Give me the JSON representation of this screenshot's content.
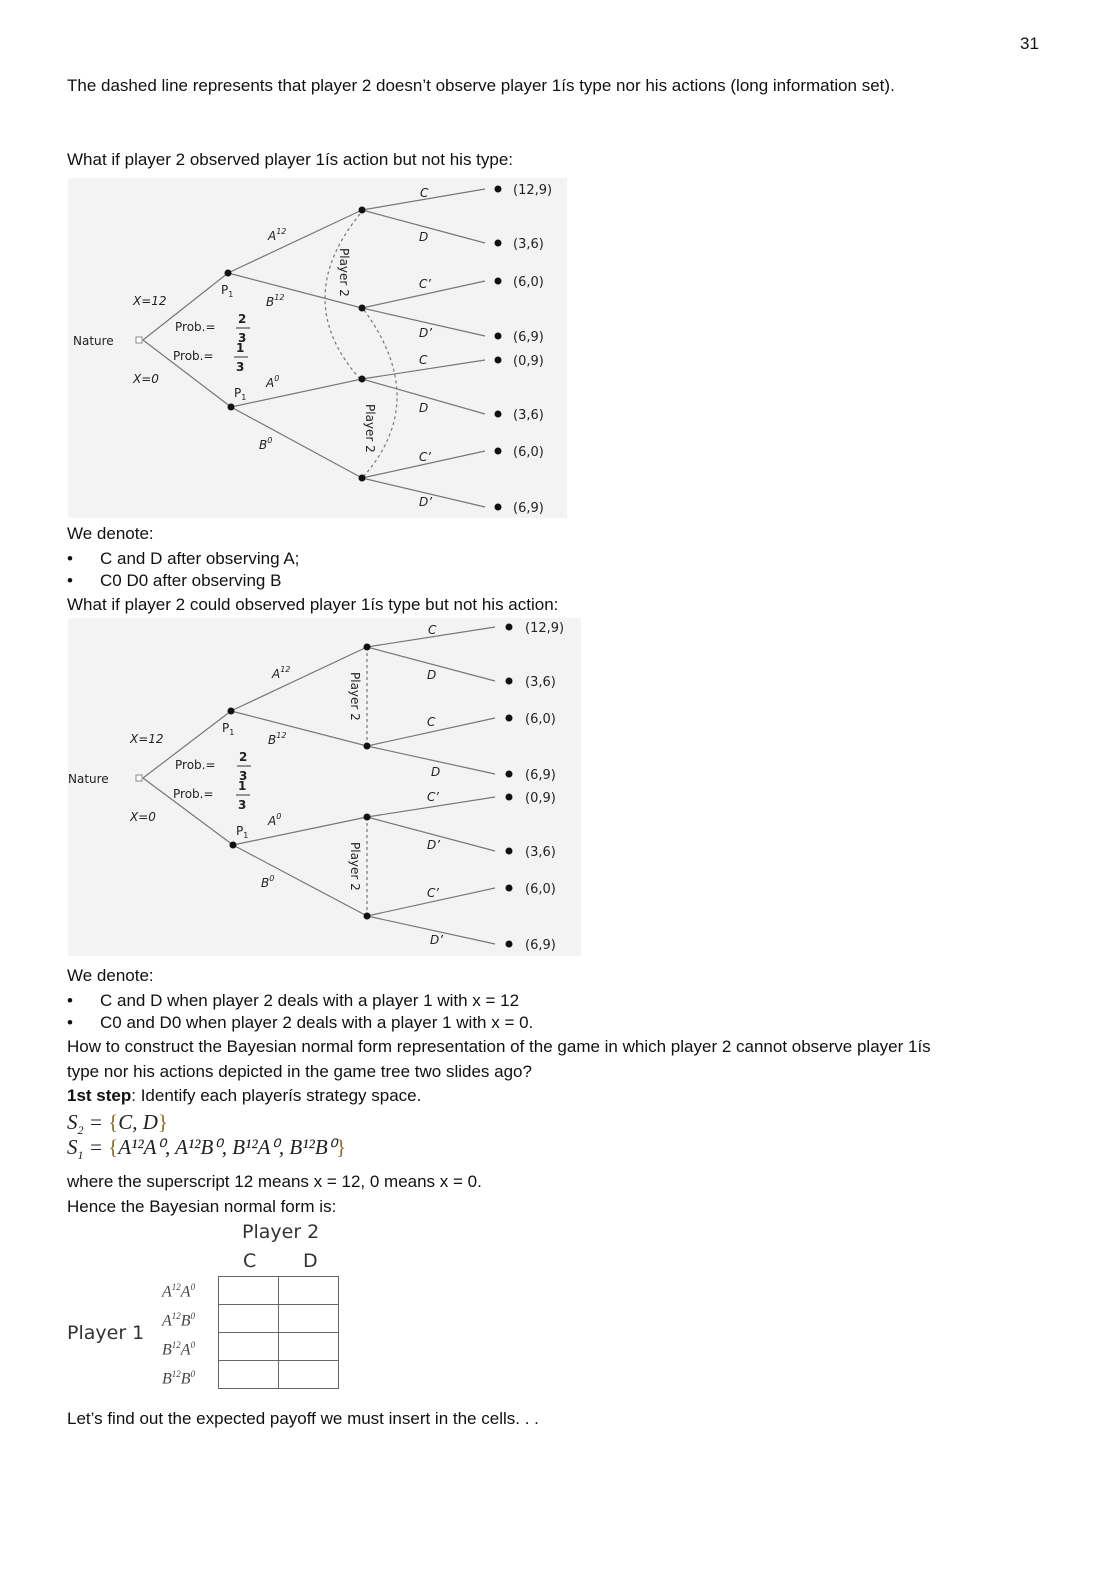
{
  "page_number": "31",
  "para1": "The dashed line represents that player 2 doesn’t observe player 1ís type nor his actions (long information set).",
  "q1": "What if player 2 observed player 1ís action but not his type:",
  "tree1": {
    "nature": "Nature",
    "x12": "X=12",
    "x0": "X=0",
    "prob_label": "Prob.=",
    "p_hi_num": "2",
    "p_hi_den": "3",
    "p_lo_num": "1",
    "p_lo_den": "3",
    "p1": "P",
    "p1_sub": "1",
    "player2": "Player 2",
    "a12": "A",
    "b12": "B",
    "a0": "A",
    "b0": "B",
    "sup12": "12",
    "sup0": "0",
    "actions": [
      "C",
      "D",
      "C’",
      "D’",
      "C",
      "D",
      "C’",
      "D’"
    ],
    "payoffs": [
      "(12,9)",
      "(3,6)",
      "(6,0)",
      "(6,9)",
      "(0,9)",
      "(3,6)",
      "(6,0)",
      "(6,9)"
    ]
  },
  "denote1": {
    "title": "We denote:",
    "bullets": [
      "C and D after observing A;",
      "C0 D0 after observing B"
    ]
  },
  "q2": "What if player 2 could observed player 1ís type but not his action:",
  "tree2": {
    "actions": [
      "C",
      "D",
      "C",
      "D",
      "C’",
      "D’",
      "C’",
      "D’"
    ],
    "payoffs": [
      "(12,9)",
      "(3,6)",
      "(6,0)",
      "(6,9)",
      "(0,9)",
      "(3,6)",
      "(6,0)",
      "(6,9)"
    ]
  },
  "denote2": {
    "title": "We denote:",
    "bullets": [
      "C and D when player 2 deals with a player 1 with x = 12",
      "C0 and D0 when player 2 deals with a player 1 with x = 0."
    ]
  },
  "how1": "How to construct the Bayesian normal form representation of the game in which player 2 cannot observe player 1ís",
  "how2": "type nor his actions depicted in the game tree two slides ago?",
  "step_bold": "1st step",
  "step_rest": ": Identify each playerís strategy space.",
  "s2": {
    "lhs": "S",
    "sub": "2",
    "set": "C, D"
  },
  "s1": {
    "lhs": "S",
    "sub": "1",
    "items": [
      "A¹²A⁰",
      "A¹²B⁰",
      "B¹²A⁰",
      "B¹²B⁰"
    ]
  },
  "where": "where the superscript 12 means x = 12, 0 means x = 0.",
  "hence": "Hence the Bayesian normal form is:",
  "normal_form": {
    "col_player": "Player 2",
    "cols": [
      "C",
      "D"
    ],
    "row_player": "Player 1",
    "rows": [
      [
        "A",
        "12",
        "A",
        "0"
      ],
      [
        "A",
        "12",
        "B",
        "0"
      ],
      [
        "B",
        "12",
        "A",
        "0"
      ],
      [
        "B",
        "12",
        "B",
        "0"
      ]
    ]
  },
  "closing": "Let’s find out the expected payoff we must insert in the cells. . ."
}
